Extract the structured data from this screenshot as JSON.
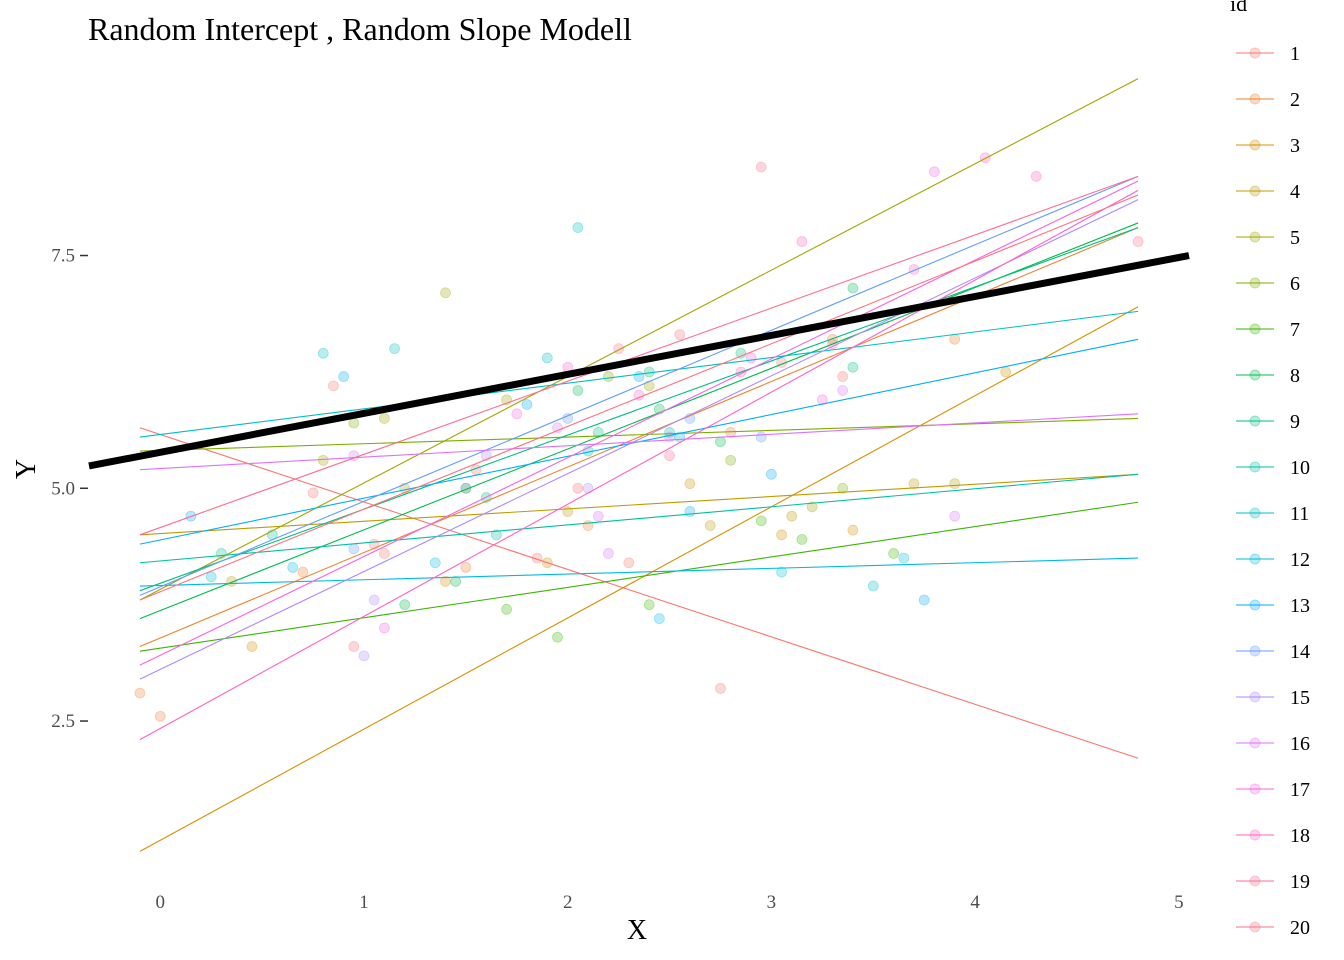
{
  "chart_data": {
    "type": "line",
    "title": "Random Intercept , Random Slope Modell",
    "xlabel": "X",
    "ylabel": "Y",
    "xlim": [
      -0.35,
      5.05
    ],
    "ylim": [
      0.9,
      9.6
    ],
    "x_ticks": [
      0,
      1,
      2,
      3,
      4,
      5
    ],
    "x_tick_labels": [
      "0",
      "1",
      "2",
      "3",
      "4",
      "5"
    ],
    "y_ticks": [
      2.5,
      5.0,
      7.5
    ],
    "y_tick_labels": [
      "2.5",
      "5.0",
      "7.5"
    ],
    "grid": false,
    "legend": {
      "title": "id",
      "placement": "right",
      "entries": [
        "1",
        "2",
        "3",
        "4",
        "5",
        "6",
        "7",
        "8",
        "9",
        "10",
        "11",
        "12",
        "13",
        "14",
        "15",
        "16",
        "17",
        "18",
        "19",
        "20"
      ]
    },
    "fixed_effect_line": {
      "x": [
        -0.35,
        5.05
      ],
      "y": [
        5.24,
        7.5
      ],
      "color": "#000000"
    },
    "series": [
      {
        "name": "1",
        "color": "#F8766D",
        "line": {
          "x": [
            -0.1,
            4.8
          ],
          "y": [
            5.65,
            2.1
          ]
        },
        "points": [
          [
            0.75,
            4.95
          ],
          [
            1.1,
            4.3
          ],
          [
            1.85,
            4.25
          ],
          [
            2.3,
            4.2
          ],
          [
            2.75,
            2.85
          ],
          [
            3.35,
            6.2
          ],
          [
            0.85,
            6.1
          ]
        ]
      },
      {
        "name": "2",
        "color": "#EA8331",
        "line": {
          "x": [
            -0.1,
            4.8
          ],
          "y": [
            3.3,
            7.8
          ]
        },
        "points": [
          [
            -0.1,
            2.8
          ],
          [
            0,
            2.55
          ],
          [
            0.7,
            4.1
          ],
          [
            1.5,
            4.15
          ],
          [
            2.1,
            4.6
          ],
          [
            2.8,
            5.6
          ],
          [
            3.3,
            6.6
          ],
          [
            3.9,
            6.6
          ]
        ]
      },
      {
        "name": "3",
        "color": "#D89000",
        "line": {
          "x": [
            -0.1,
            4.8
          ],
          "y": [
            1.1,
            6.95
          ]
        },
        "points": [
          [
            0.45,
            3.3
          ],
          [
            1.4,
            4.0
          ],
          [
            1.9,
            4.2
          ],
          [
            2.6,
            5.05
          ],
          [
            3.05,
            4.5
          ],
          [
            3.4,
            4.55
          ],
          [
            4.15,
            6.25
          ]
        ]
      },
      {
        "name": "4",
        "color": "#C09B00",
        "line": {
          "x": [
            -0.1,
            4.8
          ],
          "y": [
            4.5,
            5.15
          ]
        },
        "points": [
          [
            0.35,
            4.0
          ],
          [
            1.2,
            5.0
          ],
          [
            2.0,
            4.75
          ],
          [
            2.7,
            4.6
          ],
          [
            3.1,
            4.7
          ],
          [
            3.7,
            5.05
          ],
          [
            3.9,
            5.05
          ]
        ]
      },
      {
        "name": "5",
        "color": "#A3A500",
        "line": {
          "x": [
            -0.1,
            4.8
          ],
          "y": [
            3.8,
            9.4
          ]
        },
        "points": [
          [
            0.8,
            5.3
          ],
          [
            1.1,
            5.75
          ],
          [
            1.4,
            7.1
          ],
          [
            1.7,
            5.95
          ],
          [
            2.4,
            6.1
          ],
          [
            3.2,
            4.8
          ]
        ]
      },
      {
        "name": "6",
        "color": "#7CAE00",
        "line": {
          "x": [
            -0.1,
            4.8
          ],
          "y": [
            5.4,
            5.75
          ]
        },
        "points": [
          [
            0.95,
            5.7
          ],
          [
            1.5,
            5.0
          ],
          [
            2.2,
            6.2
          ],
          [
            2.8,
            5.3
          ],
          [
            3.35,
            5.0
          ]
        ]
      },
      {
        "name": "7",
        "color": "#39B600",
        "line": {
          "x": [
            -0.1,
            4.8
          ],
          "y": [
            3.25,
            4.85
          ]
        },
        "points": [
          [
            1.7,
            3.7
          ],
          [
            1.95,
            3.4
          ],
          [
            2.4,
            3.75
          ],
          [
            2.95,
            4.65
          ],
          [
            3.15,
            4.45
          ],
          [
            3.6,
            4.3
          ]
        ]
      },
      {
        "name": "8",
        "color": "#00BB4E",
        "line": {
          "x": [
            -0.1,
            4.8
          ],
          "y": [
            3.6,
            7.85
          ]
        },
        "points": [
          [
            1.2,
            3.75
          ],
          [
            1.45,
            4.0
          ],
          [
            2.05,
            6.05
          ],
          [
            2.45,
            5.85
          ],
          [
            2.75,
            5.5
          ],
          [
            3.4,
            7.15
          ]
        ]
      },
      {
        "name": "9",
        "color": "#00BF7D",
        "line": {
          "x": [
            -0.1,
            4.8
          ],
          "y": [
            3.9,
            7.8
          ]
        },
        "points": [
          [
            1.6,
            4.9
          ],
          [
            2.15,
            5.6
          ],
          [
            2.4,
            6.25
          ],
          [
            2.85,
            6.45
          ],
          [
            3.4,
            6.3
          ]
        ]
      },
      {
        "name": "10",
        "color": "#00C1A3",
        "line": {
          "x": [
            -0.1,
            4.8
          ],
          "y": [
            4.2,
            5.15
          ]
        },
        "points": [
          [
            0.3,
            4.3
          ],
          [
            0.55,
            4.5
          ],
          [
            1.65,
            4.5
          ],
          [
            2.1,
            5.4
          ],
          [
            2.5,
            5.6
          ]
        ]
      },
      {
        "name": "11",
        "color": "#00BFC4",
        "line": {
          "x": [
            -0.1,
            4.8
          ],
          "y": [
            5.55,
            6.9
          ]
        },
        "points": [
          [
            0.8,
            6.45
          ],
          [
            1.15,
            6.5
          ],
          [
            1.9,
            6.4
          ],
          [
            2.05,
            7.8
          ],
          [
            2.55,
            5.55
          ],
          [
            3.5,
            3.95
          ]
        ]
      },
      {
        "name": "12",
        "color": "#00B9E3",
        "line": {
          "x": [
            -0.1,
            4.8
          ],
          "y": [
            3.95,
            4.25
          ]
        },
        "points": [
          [
            0.25,
            4.05
          ],
          [
            0.65,
            4.15
          ],
          [
            1.35,
            4.2
          ],
          [
            2.45,
            3.6
          ],
          [
            3.05,
            4.1
          ],
          [
            3.65,
            4.25
          ]
        ]
      },
      {
        "name": "13",
        "color": "#00ADFA",
        "line": {
          "x": [
            -0.1,
            4.8
          ],
          "y": [
            4.4,
            6.6
          ]
        },
        "points": [
          [
            0.15,
            4.7
          ],
          [
            0.9,
            6.2
          ],
          [
            1.8,
            5.9
          ],
          [
            2.35,
            6.2
          ],
          [
            2.6,
            4.75
          ],
          [
            3.0,
            5.15
          ],
          [
            3.75,
            3.8
          ]
        ]
      },
      {
        "name": "14",
        "color": "#619CFF",
        "line": {
          "x": [
            -0.1,
            4.8
          ],
          "y": [
            3.85,
            8.35
          ]
        },
        "points": [
          [
            0.95,
            4.35
          ],
          [
            1.5,
            5.0
          ],
          [
            2.0,
            5.75
          ],
          [
            2.6,
            5.75
          ],
          [
            2.95,
            5.55
          ]
        ]
      },
      {
        "name": "15",
        "color": "#AE87FF",
        "line": {
          "x": [
            -0.1,
            4.8
          ],
          "y": [
            2.95,
            8.1
          ]
        },
        "points": [
          [
            1.0,
            3.2
          ],
          [
            1.05,
            3.8
          ],
          [
            1.6,
            5.35
          ],
          [
            2.1,
            5.0
          ],
          [
            2.5,
            5.55
          ]
        ]
      },
      {
        "name": "16",
        "color": "#DB72FB",
        "line": {
          "x": [
            -0.1,
            4.8
          ],
          "y": [
            5.2,
            5.8
          ]
        },
        "points": [
          [
            0.95,
            5.35
          ],
          [
            1.95,
            5.65
          ],
          [
            2.15,
            4.7
          ],
          [
            2.2,
            4.3
          ],
          [
            3.35,
            6.05
          ],
          [
            3.9,
            4.7
          ]
        ]
      },
      {
        "name": "17",
        "color": "#F564E3",
        "line": {
          "x": [
            -0.1,
            4.8
          ],
          "y": [
            3.1,
            8.3
          ]
        },
        "points": [
          [
            1.1,
            3.5
          ],
          [
            1.75,
            5.8
          ],
          [
            2.35,
            6.0
          ],
          [
            2.9,
            6.4
          ],
          [
            3.25,
            5.95
          ],
          [
            3.8,
            8.4
          ]
        ]
      },
      {
        "name": "18",
        "color": "#FF61C3",
        "line": {
          "x": [
            -0.1,
            4.8
          ],
          "y": [
            2.3,
            8.2
          ]
        },
        "points": [
          [
            2.0,
            6.3
          ],
          [
            2.85,
            6.25
          ],
          [
            3.15,
            7.65
          ],
          [
            3.7,
            7.35
          ],
          [
            4.05,
            8.55
          ],
          [
            4.3,
            8.35
          ]
        ]
      },
      {
        "name": "19",
        "color": "#FF6C91",
        "line": {
          "x": [
            -0.1,
            4.8
          ],
          "y": [
            4.5,
            8.35
          ]
        },
        "points": [
          [
            2.25,
            6.5
          ],
          [
            2.5,
            5.35
          ],
          [
            2.95,
            8.45
          ],
          [
            3.3,
            6.55
          ],
          [
            4.8,
            7.65
          ]
        ]
      },
      {
        "name": "20",
        "color": "#FC717F",
        "line": {
          "x": [
            -0.1,
            4.8
          ],
          "y": [
            3.8,
            8.15
          ]
        },
        "points": [
          [
            0.95,
            3.3
          ],
          [
            1.05,
            4.4
          ],
          [
            1.55,
            5.2
          ],
          [
            2.05,
            5.0
          ],
          [
            2.55,
            6.65
          ],
          [
            3.05,
            6.35
          ]
        ]
      }
    ]
  }
}
